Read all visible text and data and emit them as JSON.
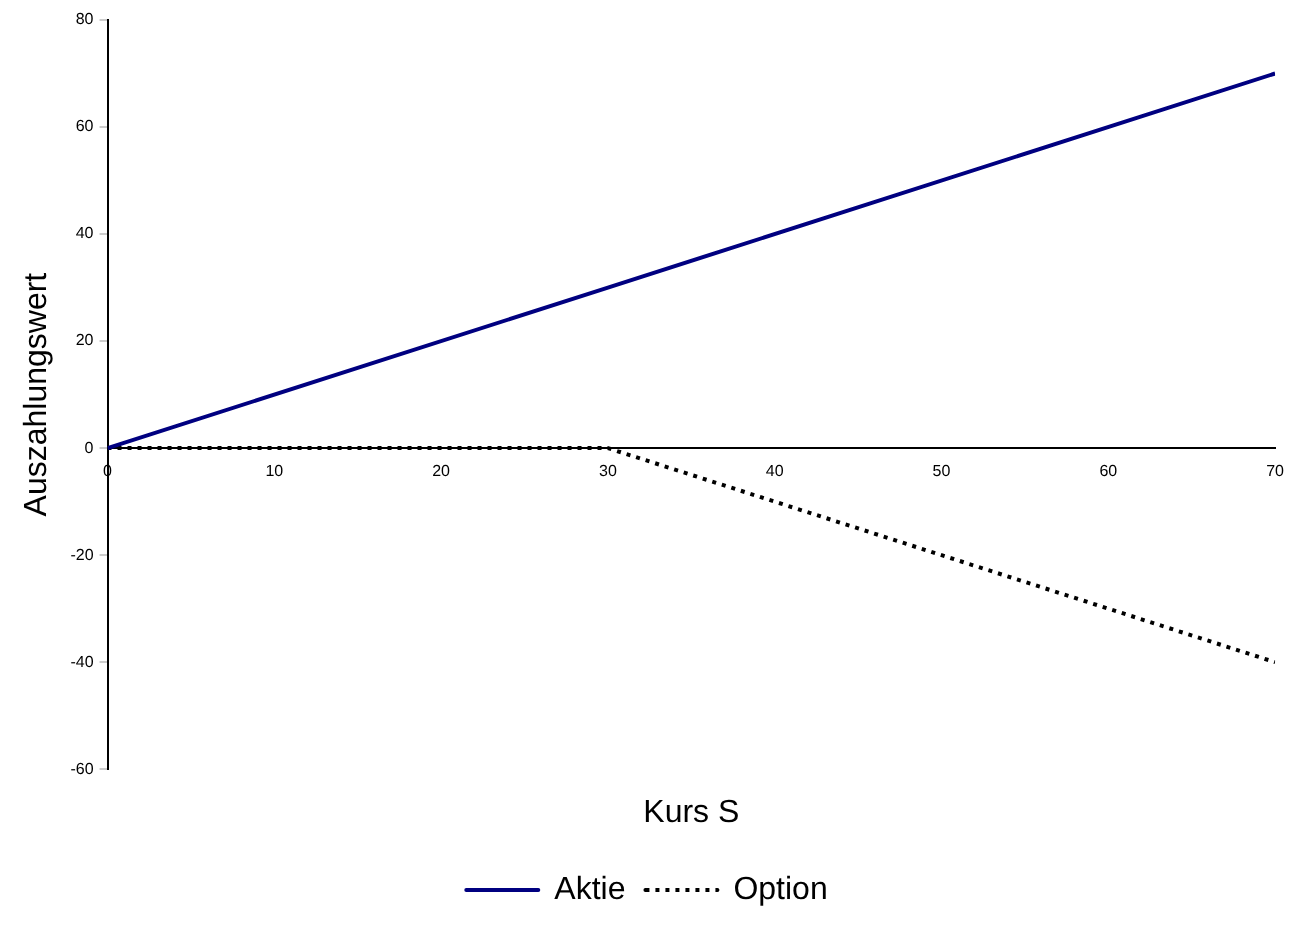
{
  "chart_data": {
    "type": "line",
    "xlabel": "Kurs S",
    "ylabel": "Auszahlungswert",
    "x": [
      0,
      30,
      70
    ],
    "series": [
      {
        "name": "Aktie",
        "color": "#000080",
        "values": [
          0,
          30,
          70
        ],
        "line_style": "solid"
      },
      {
        "name": "Option",
        "color": "#000000",
        "values": [
          0,
          0,
          -40
        ],
        "line_style": "dotted"
      }
    ],
    "xlim": [
      0,
      70
    ],
    "xticks": [
      0,
      10,
      20,
      30,
      40,
      50,
      60,
      70
    ],
    "ylim": [
      -60,
      80
    ],
    "yticks": [
      -60,
      -40,
      -20,
      0,
      20,
      40,
      60,
      80
    ],
    "grid": false,
    "legend": "bottom",
    "marker": "none"
  }
}
